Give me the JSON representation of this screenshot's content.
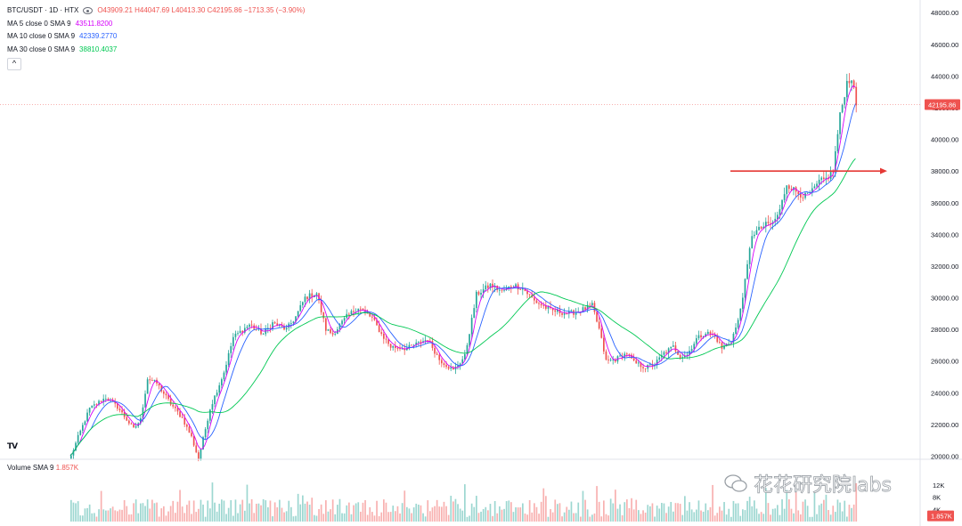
{
  "header": {
    "symbol": "BTC/USDT · 1D · HTX",
    "ohlc": "O43909.21 H44047.69 L40413.30 C42195.86 −1713.35 (−3.90%)",
    "indicators": [
      {
        "label": "MA 5 close 0 SMA 9",
        "value": "43511.8200"
      },
      {
        "label": "MA 10 close 0 SMA 9",
        "value": "42339.2770"
      },
      {
        "label": "MA 30 close 0 SMA 9",
        "value": "38810.4037"
      }
    ],
    "collapse_glyph": "^"
  },
  "volume_legend": {
    "label": "Volume SMA 9",
    "value": "1.857K"
  },
  "watermark": "花花研究院labs",
  "logo_text": "TV",
  "colors": {
    "up": "#26a69a",
    "down": "#ef5350",
    "ma5": "#d500f9",
    "ma10": "#2962ff",
    "ma30": "#00c853",
    "arrow": "#e53935"
  },
  "chart_data": {
    "type": "candlestick",
    "price_axis": {
      "ticks": [
        "48000.00",
        "46000.00",
        "44000.00",
        "42000.00",
        "40000.00",
        "38000.00",
        "36000.00",
        "34000.00",
        "32000.00",
        "30000.00",
        "28000.00",
        "26000.00",
        "24000.00",
        "22000.00",
        "20000.00"
      ],
      "range": [
        19800,
        48800
      ],
      "last_price": "42195.86"
    },
    "volume_axis": {
      "ticks": [
        "12K",
        "8K",
        "4K"
      ],
      "last": "1.857K",
      "range": [
        0,
        14000
      ]
    },
    "grid": false,
    "annotation": {
      "type": "horizontal-arrow",
      "price": 38000,
      "from_index": 240,
      "to_index": 345,
      "color": "#e53935"
    },
    "waypoints": [
      [
        0,
        20000
      ],
      [
        3,
        21200
      ],
      [
        8,
        23000
      ],
      [
        15,
        23700
      ],
      [
        20,
        23100
      ],
      [
        27,
        21700
      ],
      [
        30,
        22300
      ],
      [
        33,
        24900
      ],
      [
        37,
        24600
      ],
      [
        43,
        23300
      ],
      [
        48,
        22400
      ],
      [
        52,
        21200
      ],
      [
        55,
        19800
      ],
      [
        60,
        23000
      ],
      [
        66,
        25300
      ],
      [
        70,
        27500
      ],
      [
        77,
        28300
      ],
      [
        83,
        27700
      ],
      [
        87,
        28400
      ],
      [
        93,
        28000
      ],
      [
        97,
        28800
      ],
      [
        101,
        30000
      ],
      [
        106,
        30300
      ],
      [
        110,
        28000
      ],
      [
        113,
        27700
      ],
      [
        119,
        28800
      ],
      [
        124,
        29400
      ],
      [
        130,
        28700
      ],
      [
        134,
        27700
      ],
      [
        138,
        26900
      ],
      [
        145,
        26800
      ],
      [
        154,
        27400
      ],
      [
        159,
        26100
      ],
      [
        165,
        25400
      ],
      [
        170,
        26300
      ],
      [
        173,
        28600
      ],
      [
        175,
        30200
      ],
      [
        181,
        30800
      ],
      [
        186,
        30400
      ],
      [
        191,
        30800
      ],
      [
        195,
        30600
      ],
      [
        200,
        29800
      ],
      [
        207,
        29200
      ],
      [
        215,
        29000
      ],
      [
        220,
        29200
      ],
      [
        225,
        29500
      ],
      [
        228,
        28000
      ],
      [
        231,
        26000
      ],
      [
        235,
        26100
      ],
      [
        240,
        26500
      ],
      [
        243,
        25900
      ],
      [
        248,
        25600
      ],
      [
        252,
        25800
      ],
      [
        256,
        26500
      ],
      [
        260,
        26900
      ],
      [
        263,
        26300
      ],
      [
        266,
        26400
      ],
      [
        270,
        27400
      ],
      [
        274,
        27800
      ],
      [
        278,
        27600
      ],
      [
        281,
        26800
      ],
      [
        285,
        27300
      ],
      [
        288,
        28500
      ],
      [
        291,
        31000
      ],
      [
        294,
        34000
      ],
      [
        300,
        34600
      ],
      [
        303,
        34700
      ],
      [
        306,
        35500
      ],
      [
        309,
        37200
      ],
      [
        313,
        36700
      ],
      [
        317,
        36400
      ],
      [
        320,
        36700
      ],
      [
        323,
        37300
      ],
      [
        326,
        37500
      ],
      [
        329,
        38000
      ],
      [
        332,
        41500
      ],
      [
        335,
        43600
      ],
      [
        337,
        43900
      ],
      [
        339,
        42200
      ]
    ],
    "candle_count": 340,
    "ma_series": [
      "MA 5",
      "MA 10",
      "MA 30"
    ]
  }
}
